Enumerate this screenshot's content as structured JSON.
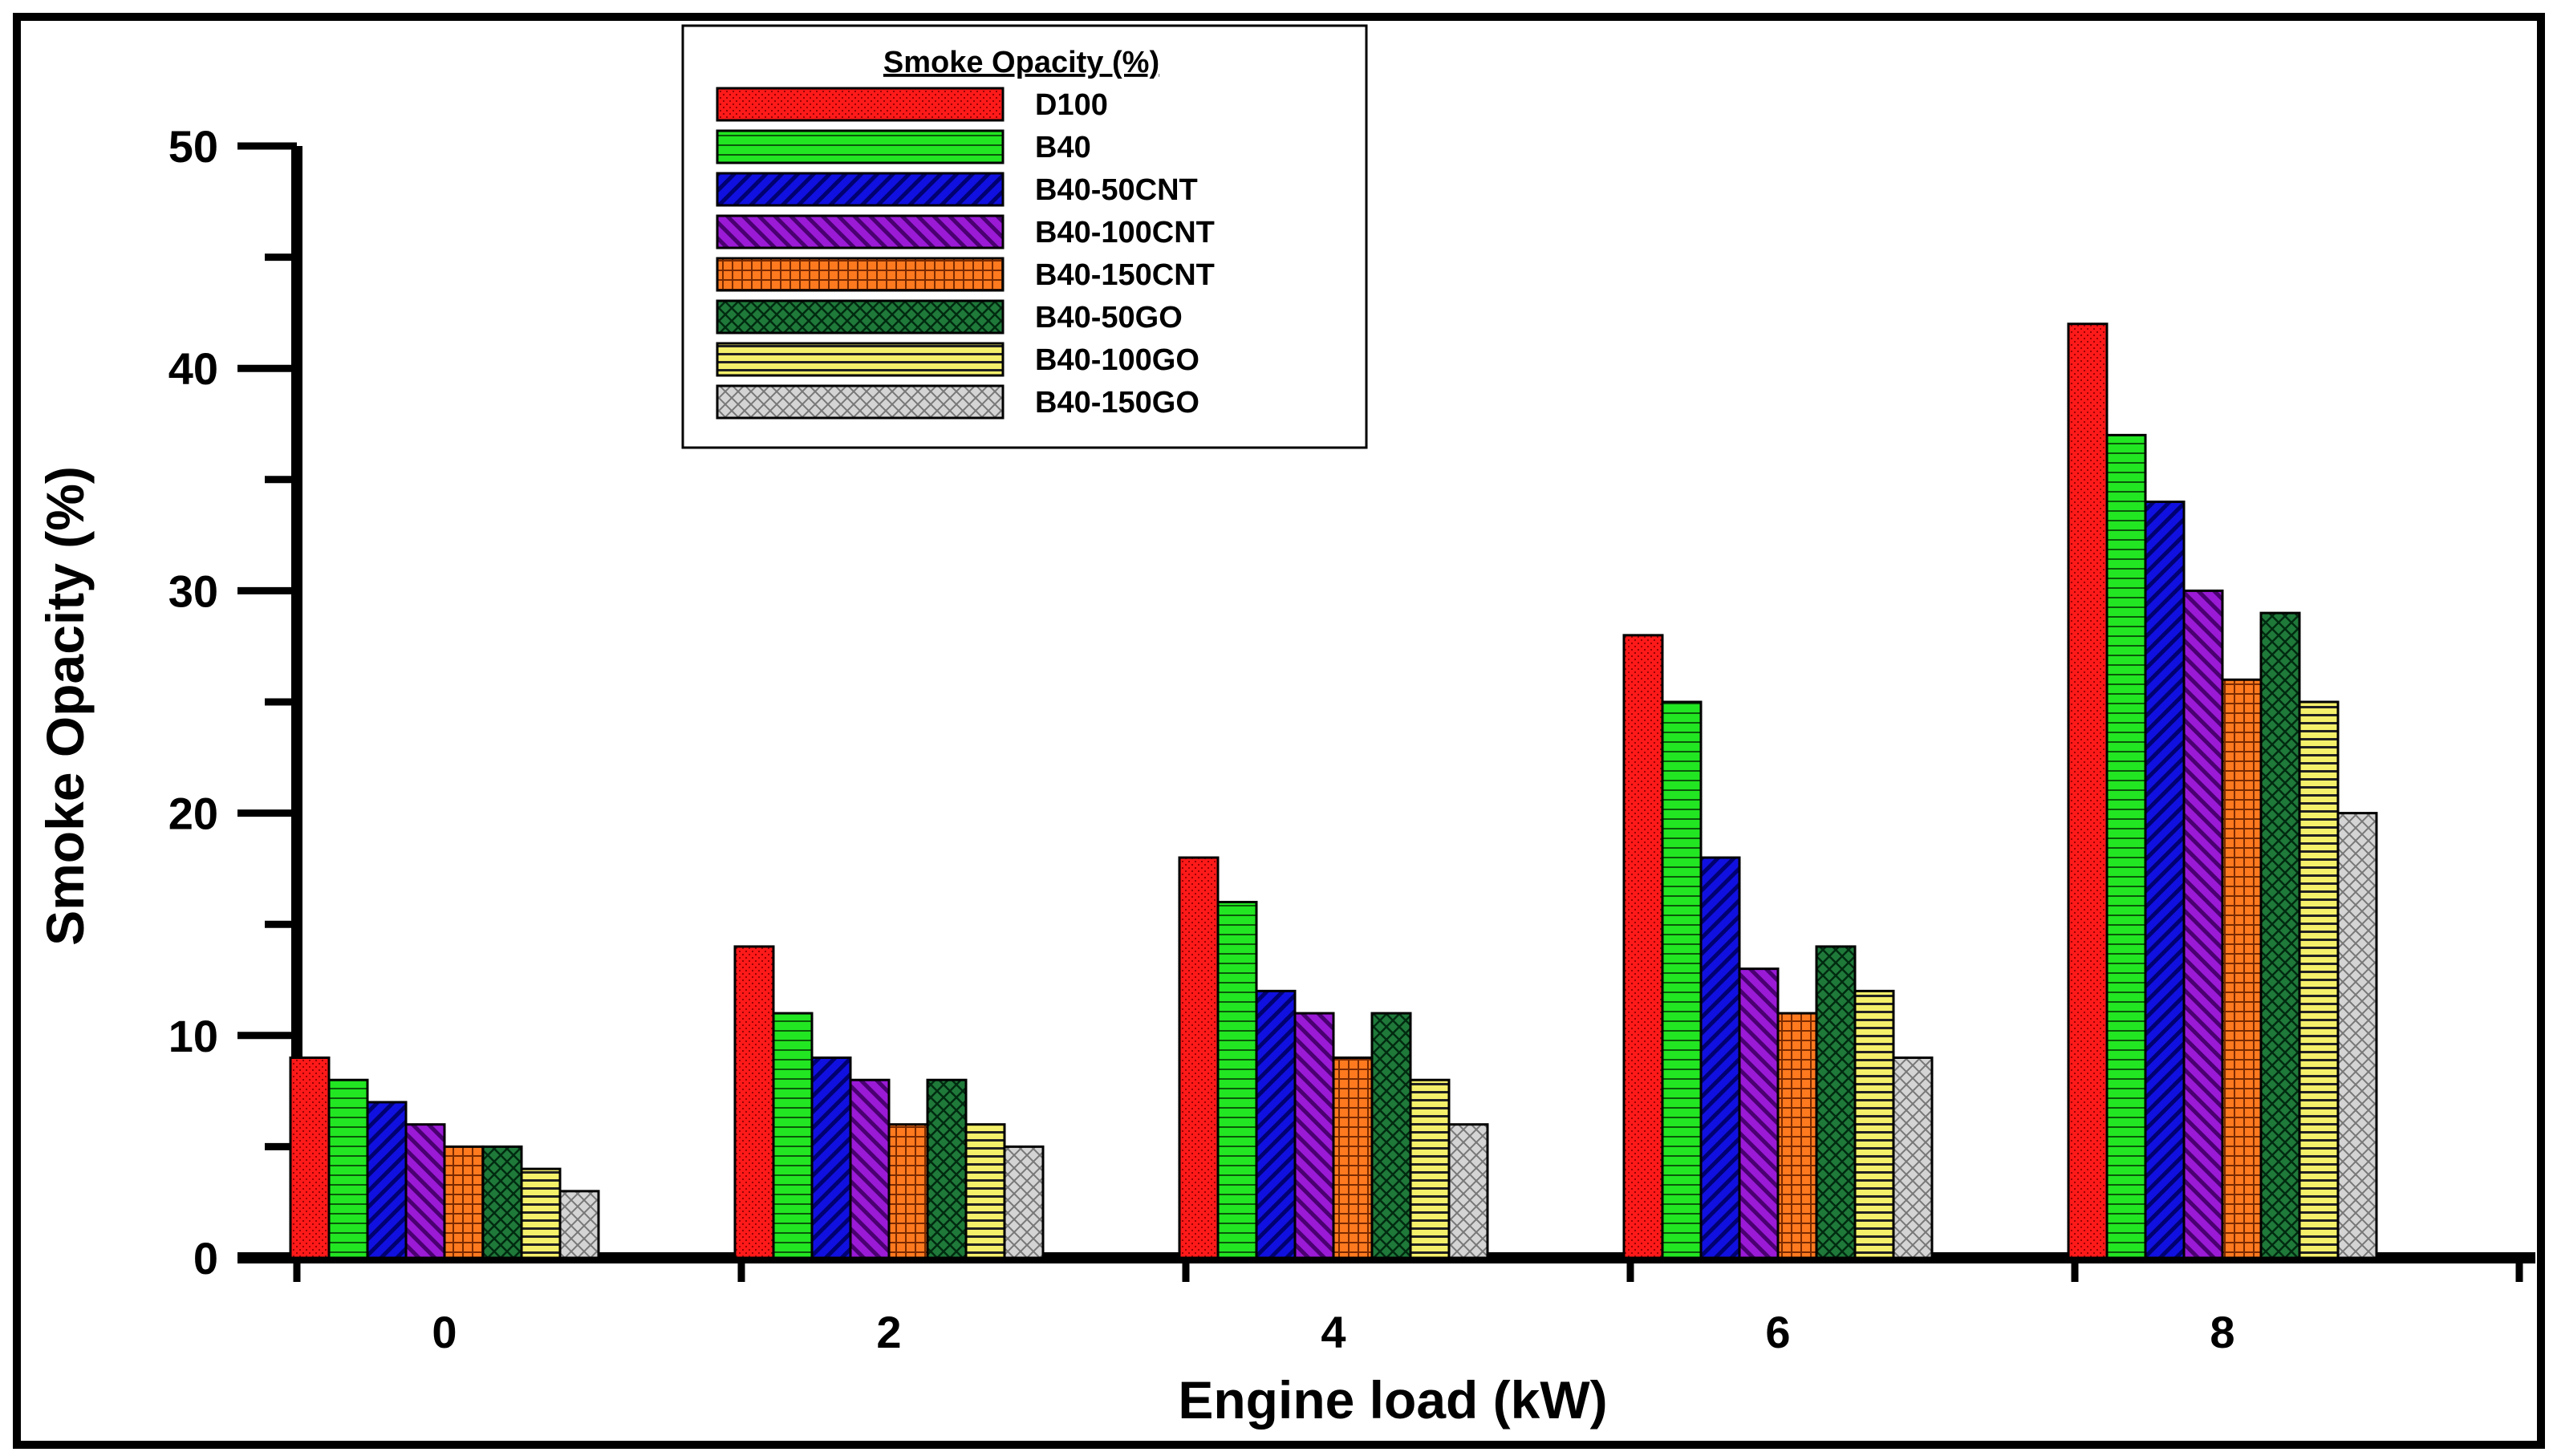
{
  "chart_data": {
    "type": "bar",
    "title": "",
    "xlabel": "Engine load (kW)",
    "ylabel": "Smoke Opacity (%)",
    "ylim": [
      0,
      50
    ],
    "yticks": [
      "0",
      "10",
      "20",
      "30",
      "40",
      "50"
    ],
    "categories": [
      "0",
      "2",
      "4",
      "6",
      "8"
    ],
    "legend_title": "Smoke Opacity (%)",
    "legend_position": "top-left",
    "series": [
      {
        "name": "D100",
        "color": "#ff1a1a",
        "pattern": "dots",
        "values": [
          9,
          14,
          18,
          28,
          42
        ]
      },
      {
        "name": "B40",
        "color": "#22e622",
        "pattern": "hlines",
        "values": [
          8,
          11,
          16,
          25,
          37
        ]
      },
      {
        "name": "B40-50CNT",
        "color": "#1010e0",
        "pattern": "diag-right",
        "values": [
          7,
          9,
          12,
          18,
          34
        ]
      },
      {
        "name": "B40-100CNT",
        "color": "#9a1ad6",
        "pattern": "diag-left",
        "values": [
          6,
          8,
          11,
          13,
          30
        ]
      },
      {
        "name": "B40-150CNT",
        "color": "#ff7a1f",
        "pattern": "grid",
        "values": [
          5,
          6,
          9,
          11,
          26
        ]
      },
      {
        "name": "B40-50GO",
        "color": "#1f7a3a",
        "pattern": "crosshatch",
        "values": [
          5,
          8,
          11,
          14,
          29
        ]
      },
      {
        "name": "B40-100GO",
        "color": "#f5f06a",
        "pattern": "hlines-thick",
        "values": [
          4,
          6,
          8,
          12,
          25
        ]
      },
      {
        "name": "B40-150GO",
        "color": "#d4d4d4",
        "pattern": "crosshatch-light",
        "values": [
          3,
          5,
          6,
          9,
          20
        ]
      }
    ]
  }
}
